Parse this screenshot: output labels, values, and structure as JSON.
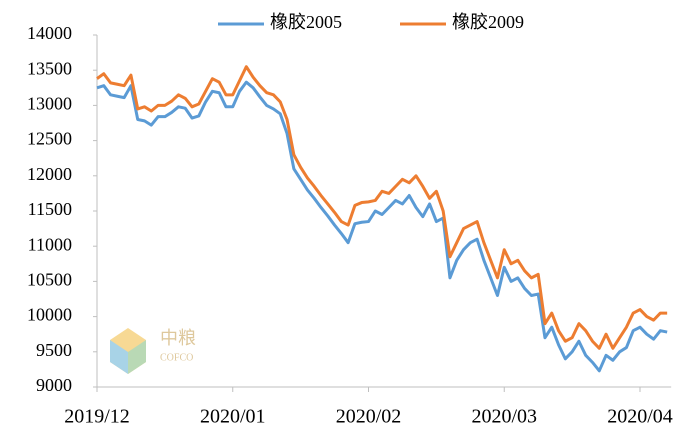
{
  "chart_data": {
    "type": "line",
    "categories": [
      "2019/12",
      null,
      null,
      null,
      null,
      null,
      null,
      null,
      null,
      null,
      null,
      null,
      null,
      null,
      null,
      null,
      null,
      null,
      null,
      null,
      "2020/01",
      null,
      null,
      null,
      null,
      null,
      null,
      null,
      null,
      null,
      null,
      null,
      null,
      null,
      null,
      null,
      null,
      null,
      null,
      null,
      "2020/02",
      null,
      null,
      null,
      null,
      null,
      null,
      null,
      null,
      null,
      null,
      null,
      null,
      null,
      null,
      null,
      null,
      null,
      null,
      null,
      "2020/03",
      null,
      null,
      null,
      null,
      null,
      null,
      null,
      null,
      null,
      null,
      null,
      null,
      null,
      null,
      null,
      null,
      null,
      null,
      null,
      "2020/04",
      null,
      null,
      null,
      null
    ],
    "series": [
      {
        "name": "橡胶2005",
        "color": "#5b9bd5",
        "values": [
          13250,
          13280,
          13150,
          13130,
          13110,
          13280,
          12800,
          12780,
          12720,
          12840,
          12840,
          12900,
          12980,
          12960,
          12820,
          12850,
          13050,
          13200,
          13180,
          12980,
          12980,
          13200,
          13330,
          13250,
          13120,
          13000,
          12950,
          12880,
          12600,
          12100,
          11950,
          11800,
          11680,
          11550,
          11430,
          11300,
          11180,
          11050,
          11320,
          11340,
          11350,
          11500,
          11450,
          11550,
          11650,
          11600,
          11720,
          11550,
          11420,
          11600,
          11350,
          11400,
          10550,
          10800,
          10950,
          11050,
          11100,
          10800,
          10550,
          10300,
          10700,
          10500,
          10550,
          10400,
          10300,
          10320,
          9700,
          9850,
          9600,
          9400,
          9500,
          9650,
          9450,
          9350,
          9230,
          9450,
          9380,
          9500,
          9560,
          9800,
          9850,
          9750,
          9680,
          9800,
          9780
        ]
      },
      {
        "name": "橡胶2009",
        "color": "#ed7d31",
        "values": [
          13380,
          13450,
          13320,
          13300,
          13280,
          13430,
          12950,
          12980,
          12920,
          13000,
          13000,
          13060,
          13150,
          13100,
          12980,
          13020,
          13200,
          13380,
          13330,
          13150,
          13150,
          13350,
          13550,
          13400,
          13280,
          13180,
          13150,
          13050,
          12800,
          12300,
          12120,
          11970,
          11850,
          11720,
          11600,
          11480,
          11350,
          11300,
          11580,
          11620,
          11630,
          11650,
          11780,
          11750,
          11850,
          11950,
          11900,
          12000,
          11850,
          11680,
          11780,
          11500,
          10850,
          11050,
          11250,
          11300,
          11350,
          11050,
          10800,
          10550,
          10950,
          10750,
          10800,
          10650,
          10550,
          10600,
          9900,
          10050,
          9800,
          9650,
          9700,
          9900,
          9800,
          9650,
          9550,
          9750,
          9550,
          9700,
          9850,
          10050,
          10100,
          10000,
          9950,
          10050,
          10050
        ]
      }
    ],
    "ylim": [
      9000,
      14000
    ],
    "yticks": [
      9000,
      9500,
      10000,
      10500,
      11000,
      11500,
      12000,
      12500,
      13000,
      13500,
      14000
    ],
    "grid": false,
    "legend": "top"
  }
}
